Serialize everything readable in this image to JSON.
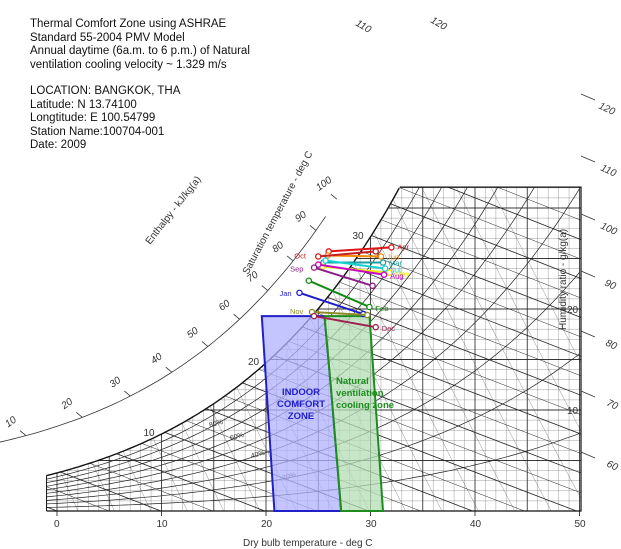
{
  "info": {
    "title": [
      "Thermal Comfort Zone using ASHRAE",
      "Standard 55-2004 PMV Model",
      "Annual daytime (6a.m. to 6 p.m.) of Natural",
      "ventilation cooling velocity ~ 1.329 m/s"
    ],
    "location": "LOCATION: BANGKOK, THA",
    "latitude": "Latitude: N 13.74100",
    "longitude": "Longtitude: E 100.54799",
    "station": "Station Name:100704-001",
    "date": "Date: 2009"
  },
  "chart_data": {
    "type": "scatter",
    "subtype": "psychrometric",
    "xlabel": "Dry bulb temperature - deg C",
    "ylabel": "Humidity ratio - g/kg(a)",
    "enthalpy_label": "Enthalpy - kJ/kg(a)",
    "saturation_label": "Saturation temperature - deg C",
    "xlim": [
      -1,
      50
    ],
    "ylim": [
      0,
      30
    ],
    "x_ticks": [
      0,
      10,
      20,
      30,
      40,
      50
    ],
    "y_ticks": [
      10,
      20
    ],
    "saturation_ticks": [
      10,
      20,
      30
    ],
    "enthalpy_ticks": [
      0,
      10,
      20,
      30,
      40,
      50,
      60,
      70,
      80,
      90,
      100,
      110,
      120
    ],
    "rh_labels": [
      "20%",
      "40%",
      "60%",
      "80%"
    ],
    "grid": true,
    "zones": [
      {
        "name": "INDOOR COMFORT ZONE",
        "label": [
          "INDOOR",
          "COMFORT",
          "ZONE"
        ],
        "color": "#2020c8",
        "fill": "#b0b0ff",
        "polygon": [
          [
            20.8,
            0
          ],
          [
            27.2,
            0
          ],
          [
            26.2,
            12.4
          ],
          [
            25.6,
            19.3
          ],
          [
            19.6,
            19.3
          ]
        ]
      },
      {
        "name": "Natural ventilation cooling zone",
        "label": [
          "Natural",
          "ventilation",
          "cooling zone"
        ],
        "color": "#1e8c1e",
        "fill": "#b4deb4",
        "polygon": [
          [
            27.2,
            0
          ],
          [
            31.2,
            0
          ],
          [
            29.9,
            19.3
          ],
          [
            25.6,
            19.3
          ],
          [
            26.2,
            12.4
          ]
        ]
      }
    ],
    "months": [
      {
        "name": "Jan",
        "color": "#1e1ec8",
        "start": [
          23.2,
          21.6
        ],
        "end": [
          29.3,
          19.5
        ]
      },
      {
        "name": "Feb",
        "color": "#148c14",
        "start": [
          24.1,
          22.8
        ],
        "end": [
          29.9,
          20.2
        ]
      },
      {
        "name": "Mar",
        "color": "#1ea0a0",
        "start": [
          25.5,
          24.6
        ],
        "end": [
          31.2,
          24.6
        ]
      },
      {
        "name": "Apr",
        "color": "#e01414",
        "start": [
          26.0,
          25.7
        ],
        "end": [
          32.0,
          26.1
        ]
      },
      {
        "name": "May",
        "color": "#e6e600",
        "start": [
          25.4,
          24.2
        ],
        "end": [
          31.8,
          23.6
        ]
      },
      {
        "name": "Jun",
        "color": "#f08c00",
        "start": [
          25.9,
          25.3
        ],
        "end": [
          31.0,
          25.2
        ]
      },
      {
        "name": "Jul",
        "color": "#14d2d2",
        "start": [
          25.7,
          24.8
        ],
        "end": [
          31.4,
          24.0
        ]
      },
      {
        "name": "Aug",
        "color": "#c800c8",
        "start": [
          25.0,
          24.4
        ],
        "end": [
          31.3,
          23.4
        ]
      },
      {
        "name": "Sep",
        "color": "#8c1e8c",
        "start": [
          24.6,
          24.1
        ],
        "end": [
          30.2,
          22.3
        ]
      },
      {
        "name": "Oct",
        "color": "#c81e1e",
        "start": [
          25.0,
          25.2
        ],
        "end": [
          30.5,
          25.7
        ]
      },
      {
        "name": "Nov",
        "color": "#8c8c28",
        "start": [
          24.4,
          19.7
        ],
        "end": [
          29.7,
          19.4
        ]
      },
      {
        "name": "Dec",
        "color": "#a01e50",
        "start": [
          24.6,
          19.3
        ],
        "end": [
          30.5,
          18.2
        ]
      }
    ]
  }
}
